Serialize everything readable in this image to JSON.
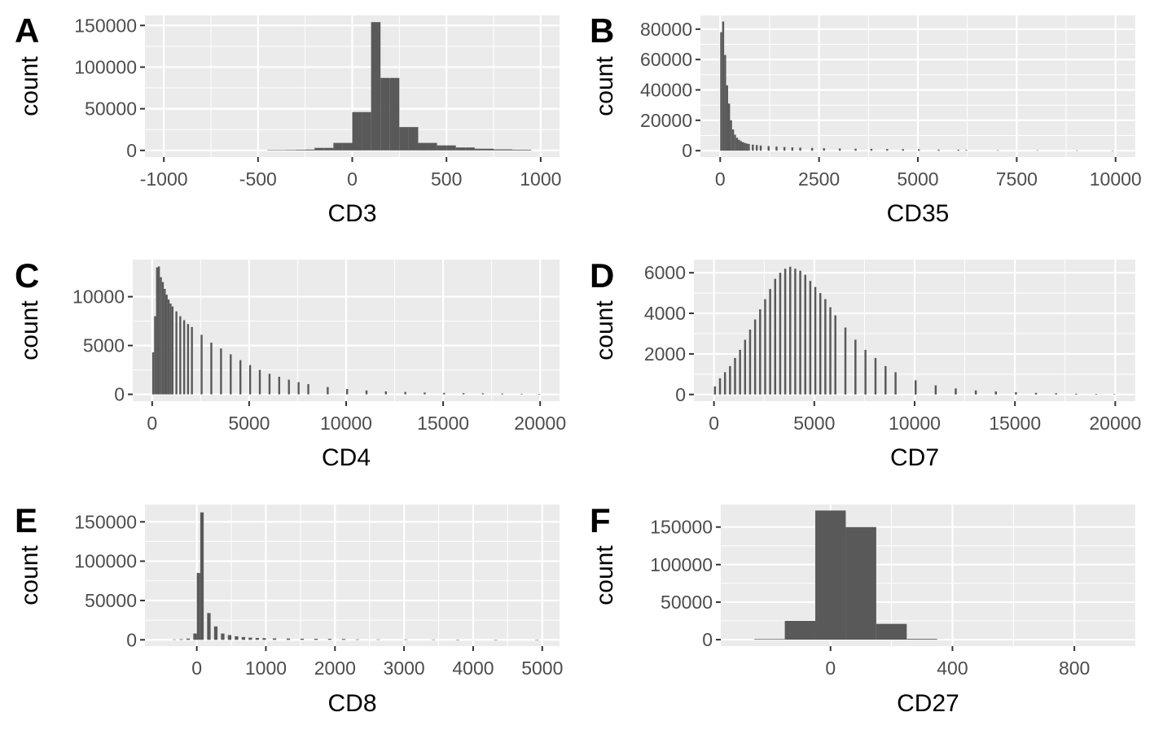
{
  "chart_data": [
    {
      "tag": "A",
      "type": "bar",
      "xlabel": "CD3",
      "ylabel": "count",
      "xlim": [
        -1100,
        1100
      ],
      "ylim": [
        -8000,
        162000
      ],
      "xticks": [
        -1000,
        -500,
        0,
        500,
        1000
      ],
      "xtick_labels": [
        "-1000",
        "-500",
        "0",
        "500",
        "1000"
      ],
      "yticks": [
        0,
        50000,
        100000,
        150000
      ],
      "ytick_labels": [
        "0",
        "50000",
        "100000",
        "150000"
      ],
      "bin_width": 50,
      "bins": [
        {
          "x": -450,
          "y": 500
        },
        {
          "x": -400,
          "y": 500
        },
        {
          "x": -350,
          "y": 600
        },
        {
          "x": -300,
          "y": 800
        },
        {
          "x": -250,
          "y": 1000
        },
        {
          "x": -200,
          "y": 3000
        },
        {
          "x": -150,
          "y": 3000
        },
        {
          "x": -100,
          "y": 9000
        },
        {
          "x": -50,
          "y": 9000
        },
        {
          "x": 0,
          "y": 46000
        },
        {
          "x": 50,
          "y": 46000
        },
        {
          "x": 100,
          "y": 154000
        },
        {
          "x": 150,
          "y": 87000
        },
        {
          "x": 200,
          "y": 87000
        },
        {
          "x": 250,
          "y": 28000
        },
        {
          "x": 300,
          "y": 28000
        },
        {
          "x": 350,
          "y": 9000
        },
        {
          "x": 400,
          "y": 9000
        },
        {
          "x": 450,
          "y": 6000
        },
        {
          "x": 500,
          "y": 6000
        },
        {
          "x": 550,
          "y": 3500
        },
        {
          "x": 600,
          "y": 3500
        },
        {
          "x": 650,
          "y": 2000
        },
        {
          "x": 700,
          "y": 2000
        },
        {
          "x": 750,
          "y": 1200
        },
        {
          "x": 800,
          "y": 1200
        },
        {
          "x": 850,
          "y": 800
        },
        {
          "x": 900,
          "y": 800
        }
      ]
    },
    {
      "tag": "B",
      "type": "bar",
      "xlabel": "CD35",
      "ylabel": "count",
      "xlim": [
        -500,
        10500
      ],
      "ylim": [
        -4200,
        89000
      ],
      "xticks": [
        0,
        2500,
        5000,
        7500,
        10000
      ],
      "xtick_labels": [
        "0",
        "2500",
        "5000",
        "7500",
        "10000"
      ],
      "yticks": [
        0,
        20000,
        40000,
        60000,
        80000
      ],
      "ytick_labels": [
        "0",
        "20000",
        "40000",
        "60000",
        "80000"
      ],
      "bin_width": 50,
      "bins": [
        {
          "x": 0,
          "y": 78000
        },
        {
          "x": 50,
          "y": 85000
        },
        {
          "x": 100,
          "y": 63000
        },
        {
          "x": 150,
          "y": 43000
        },
        {
          "x": 200,
          "y": 31000
        },
        {
          "x": 250,
          "y": 20000
        },
        {
          "x": 300,
          "y": 14000
        },
        {
          "x": 350,
          "y": 10500
        },
        {
          "x": 400,
          "y": 8500
        },
        {
          "x": 450,
          "y": 7200
        },
        {
          "x": 500,
          "y": 6300
        },
        {
          "x": 550,
          "y": 5600
        },
        {
          "x": 600,
          "y": 5100
        },
        {
          "x": 650,
          "y": 4700
        },
        {
          "x": 700,
          "y": 4400
        },
        {
          "x": 800,
          "y": 4000
        },
        {
          "x": 900,
          "y": 3700
        },
        {
          "x": 1000,
          "y": 3400
        },
        {
          "x": 1200,
          "y": 3000
        },
        {
          "x": 1400,
          "y": 2700
        },
        {
          "x": 1600,
          "y": 2400
        },
        {
          "x": 1800,
          "y": 2200
        },
        {
          "x": 2000,
          "y": 2000
        },
        {
          "x": 2300,
          "y": 1800
        },
        {
          "x": 2600,
          "y": 1600
        },
        {
          "x": 3000,
          "y": 1400
        },
        {
          "x": 3400,
          "y": 1300
        },
        {
          "x": 3800,
          "y": 1200
        },
        {
          "x": 4200,
          "y": 1100
        },
        {
          "x": 4600,
          "y": 1000
        },
        {
          "x": 5000,
          "y": 900
        },
        {
          "x": 5500,
          "y": 700
        },
        {
          "x": 6000,
          "y": 600
        },
        {
          "x": 6200,
          "y": 400
        },
        {
          "x": 7000,
          "y": 300
        },
        {
          "x": 8000,
          "y": 250
        },
        {
          "x": 9000,
          "y": 200
        },
        {
          "x": 9900,
          "y": 150
        }
      ]
    },
    {
      "tag": "C",
      "type": "bar",
      "xlabel": "CD4",
      "ylabel": "count",
      "xlim": [
        -1000,
        21000
      ],
      "ylim": [
        -700,
        13800
      ],
      "xticks": [
        0,
        5000,
        10000,
        15000,
        20000
      ],
      "xtick_labels": [
        "0",
        "5000",
        "10000",
        "15000",
        "20000"
      ],
      "yticks": [
        0,
        5000,
        10000
      ],
      "ytick_labels": [
        "0",
        "5000",
        "10000"
      ],
      "bin_width": 100,
      "bins": [
        {
          "x": 0,
          "y": 4300
        },
        {
          "x": 100,
          "y": 8000
        },
        {
          "x": 200,
          "y": 13000
        },
        {
          "x": 300,
          "y": 13100
        },
        {
          "x": 400,
          "y": 12000
        },
        {
          "x": 500,
          "y": 11500
        },
        {
          "x": 600,
          "y": 10800
        },
        {
          "x": 700,
          "y": 10200
        },
        {
          "x": 800,
          "y": 9700
        },
        {
          "x": 900,
          "y": 9300
        },
        {
          "x": 1000,
          "y": 9000
        },
        {
          "x": 1200,
          "y": 8500
        },
        {
          "x": 1400,
          "y": 8000
        },
        {
          "x": 1600,
          "y": 7600
        },
        {
          "x": 1800,
          "y": 7200
        },
        {
          "x": 2000,
          "y": 6900
        },
        {
          "x": 2500,
          "y": 6100
        },
        {
          "x": 3000,
          "y": 5300
        },
        {
          "x": 3500,
          "y": 4700
        },
        {
          "x": 4000,
          "y": 4100
        },
        {
          "x": 4500,
          "y": 3500
        },
        {
          "x": 5000,
          "y": 3000
        },
        {
          "x": 5500,
          "y": 2500
        },
        {
          "x": 6000,
          "y": 2100
        },
        {
          "x": 6500,
          "y": 1800
        },
        {
          "x": 7000,
          "y": 1500
        },
        {
          "x": 7500,
          "y": 1250
        },
        {
          "x": 8000,
          "y": 1050
        },
        {
          "x": 9000,
          "y": 750
        },
        {
          "x": 10000,
          "y": 550
        },
        {
          "x": 11000,
          "y": 400
        },
        {
          "x": 12000,
          "y": 300
        },
        {
          "x": 13000,
          "y": 240
        },
        {
          "x": 14000,
          "y": 190
        },
        {
          "x": 15000,
          "y": 150
        },
        {
          "x": 16000,
          "y": 120
        },
        {
          "x": 17000,
          "y": 100
        },
        {
          "x": 18000,
          "y": 80
        },
        {
          "x": 19000,
          "y": 60
        },
        {
          "x": 19900,
          "y": 50
        }
      ]
    },
    {
      "tag": "D",
      "type": "bar",
      "xlabel": "CD7",
      "ylabel": "count",
      "xlim": [
        -1000,
        21000
      ],
      "ylim": [
        -330,
        6650
      ],
      "xticks": [
        0,
        5000,
        10000,
        15000,
        20000
      ],
      "xtick_labels": [
        "0",
        "5000",
        "10000",
        "15000",
        "20000"
      ],
      "yticks": [
        0,
        2000,
        4000,
        6000
      ],
      "ytick_labels": [
        "0",
        "2000",
        "4000",
        "6000"
      ],
      "bin_width": 100,
      "bins": [
        {
          "x": 0,
          "y": 400
        },
        {
          "x": 250,
          "y": 800
        },
        {
          "x": 500,
          "y": 1100
        },
        {
          "x": 750,
          "y": 1400
        },
        {
          "x": 1000,
          "y": 1800
        },
        {
          "x": 1250,
          "y": 2200
        },
        {
          "x": 1500,
          "y": 2700
        },
        {
          "x": 1750,
          "y": 3200
        },
        {
          "x": 2000,
          "y": 3700
        },
        {
          "x": 2250,
          "y": 4200
        },
        {
          "x": 2500,
          "y": 4700
        },
        {
          "x": 2750,
          "y": 5200
        },
        {
          "x": 3000,
          "y": 5700
        },
        {
          "x": 3250,
          "y": 6000
        },
        {
          "x": 3500,
          "y": 6200
        },
        {
          "x": 3750,
          "y": 6300
        },
        {
          "x": 4000,
          "y": 6200
        },
        {
          "x": 4250,
          "y": 6100
        },
        {
          "x": 4500,
          "y": 5900
        },
        {
          "x": 4750,
          "y": 5600
        },
        {
          "x": 5000,
          "y": 5300
        },
        {
          "x": 5250,
          "y": 5000
        },
        {
          "x": 5500,
          "y": 4700
        },
        {
          "x": 5750,
          "y": 4300
        },
        {
          "x": 6000,
          "y": 3900
        },
        {
          "x": 6500,
          "y": 3300
        },
        {
          "x": 7000,
          "y": 2700
        },
        {
          "x": 7500,
          "y": 2200
        },
        {
          "x": 8000,
          "y": 1800
        },
        {
          "x": 8500,
          "y": 1400
        },
        {
          "x": 9000,
          "y": 1100
        },
        {
          "x": 10000,
          "y": 700
        },
        {
          "x": 11000,
          "y": 450
        },
        {
          "x": 12000,
          "y": 300
        },
        {
          "x": 13000,
          "y": 200
        },
        {
          "x": 14000,
          "y": 150
        },
        {
          "x": 15000,
          "y": 110
        },
        {
          "x": 16000,
          "y": 80
        },
        {
          "x": 17000,
          "y": 60
        },
        {
          "x": 18000,
          "y": 40
        },
        {
          "x": 19000,
          "y": 30
        },
        {
          "x": 19900,
          "y": 20
        }
      ]
    },
    {
      "tag": "E",
      "type": "bar",
      "xlabel": "CD8",
      "ylabel": "count",
      "xlim": [
        -750,
        5250
      ],
      "ylim": [
        -8000,
        172000
      ],
      "xticks": [
        0,
        1000,
        2000,
        3000,
        4000,
        5000
      ],
      "xtick_labels": [
        "0",
        "1000",
        "2000",
        "3000",
        "4000",
        "5000"
      ],
      "yticks": [
        0,
        50000,
        100000,
        150000
      ],
      "ytick_labels": [
        "0",
        "50000",
        "100000",
        "150000"
      ],
      "bin_width": 50,
      "bins": [
        {
          "x": -350,
          "y": 500
        },
        {
          "x": -250,
          "y": 800
        },
        {
          "x": -150,
          "y": 1500
        },
        {
          "x": -50,
          "y": 8000
        },
        {
          "x": 0,
          "y": 85000
        },
        {
          "x": 50,
          "y": 162000
        },
        {
          "x": 150,
          "y": 34000
        },
        {
          "x": 250,
          "y": 17000
        },
        {
          "x": 350,
          "y": 8000
        },
        {
          "x": 450,
          "y": 6000
        },
        {
          "x": 550,
          "y": 4500
        },
        {
          "x": 650,
          "y": 3500
        },
        {
          "x": 750,
          "y": 2800
        },
        {
          "x": 850,
          "y": 2400
        },
        {
          "x": 950,
          "y": 2100
        },
        {
          "x": 1100,
          "y": 1800
        },
        {
          "x": 1300,
          "y": 1600
        },
        {
          "x": 1500,
          "y": 1400
        },
        {
          "x": 1700,
          "y": 1300
        },
        {
          "x": 1900,
          "y": 1200
        },
        {
          "x": 2100,
          "y": 1100
        },
        {
          "x": 2300,
          "y": 600
        },
        {
          "x": 2600,
          "y": 500
        },
        {
          "x": 3000,
          "y": 450
        },
        {
          "x": 3400,
          "y": 400
        },
        {
          "x": 3750,
          "y": 300
        },
        {
          "x": 4300,
          "y": 100
        },
        {
          "x": 4900,
          "y": 80
        }
      ]
    },
    {
      "tag": "F",
      "type": "bar",
      "xlabel": "CD27",
      "ylabel": "count",
      "xlim": [
        -360,
        1000
      ],
      "ylim": [
        -8600,
        180000
      ],
      "xticks": [
        0,
        400,
        800
      ],
      "xtick_labels": [
        "0",
        "400",
        "800"
      ],
      "yticks": [
        0,
        50000,
        100000,
        150000
      ],
      "ytick_labels": [
        "0",
        "50000",
        "100000",
        "150000"
      ],
      "bin_width": 100,
      "bins": [
        {
          "x": -250,
          "y": 800
        },
        {
          "x": -150,
          "y": 25000
        },
        {
          "x": -50,
          "y": 172000
        },
        {
          "x": 50,
          "y": 150000
        },
        {
          "x": 150,
          "y": 21000
        },
        {
          "x": 250,
          "y": 1000
        }
      ]
    }
  ]
}
